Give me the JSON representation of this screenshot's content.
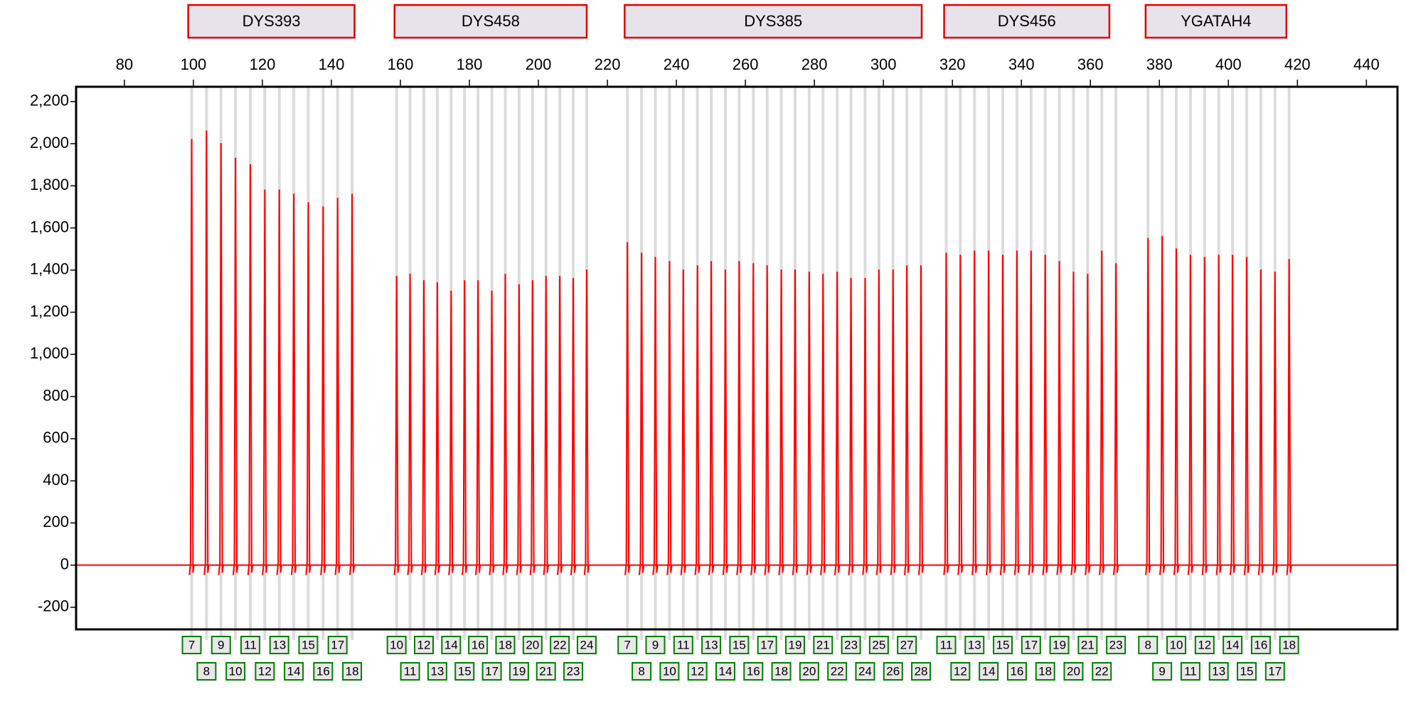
{
  "chart_data": {
    "type": "line",
    "color": "#ff0000",
    "xlim": [
      66,
      449
    ],
    "xticks": [
      80,
      100,
      120,
      140,
      160,
      180,
      200,
      220,
      240,
      260,
      280,
      300,
      320,
      340,
      360,
      380,
      400,
      420,
      440
    ],
    "ylim": [
      -305,
      2270
    ],
    "yticks": [
      -200,
      0,
      200,
      400,
      600,
      800,
      {
        "value": 1000,
        "label": "1,000"
      },
      {
        "value": 1200,
        "label": "1,200"
      },
      {
        "value": 1400,
        "label": "1,400"
      },
      {
        "value": 1600,
        "label": "1,600"
      },
      {
        "value": 1800,
        "label": "1,800"
      },
      {
        "value": 2000,
        "label": "2,000"
      },
      {
        "value": 2200,
        "label": "2,200"
      }
    ],
    "loci": [
      {
        "name": "DYS393",
        "start": 98.5,
        "end": 146.7,
        "alleles": [
          "7",
          "8",
          "9",
          "10",
          "11",
          "12",
          "13",
          "14",
          "15",
          "16",
          "17",
          "18"
        ],
        "x": [
          99.5,
          103.8,
          108,
          112.2,
          116.5,
          120.7,
          124.9,
          129.1,
          133.3,
          137.6,
          141.8,
          146
        ],
        "values": [
          2020,
          2060,
          2000,
          1930,
          1900,
          1780,
          1780,
          1760,
          1720,
          1700,
          1740,
          1760
        ]
      },
      {
        "name": "DYS458",
        "start": 158.3,
        "end": 214,
        "alleles": [
          "10",
          "11",
          "12",
          "13",
          "14",
          "15",
          "16",
          "17",
          "18",
          "19",
          "20",
          "21",
          "22",
          "23",
          "24"
        ],
        "x": [
          158.9,
          162.8,
          166.8,
          170.7,
          174.7,
          178.6,
          182.5,
          186.5,
          190.4,
          194.4,
          198.3,
          202.2,
          206.2,
          210.1,
          214
        ],
        "values": [
          1370,
          1380,
          1350,
          1340,
          1300,
          1350,
          1350,
          1300,
          1380,
          1330,
          1350,
          1370,
          1370,
          1360,
          1400
        ]
      },
      {
        "name": "DYS385",
        "start": 225,
        "end": 311.1,
        "alleles": [
          "7",
          "8",
          "9",
          "10",
          "11",
          "12",
          "13",
          "14",
          "15",
          "16",
          "17",
          "18",
          "19",
          "20",
          "21",
          "22",
          "23",
          "24",
          "25",
          "26",
          "27",
          "28"
        ],
        "x": [
          225.8,
          229.9,
          233.9,
          238,
          242,
          246.1,
          250.1,
          254.2,
          258.2,
          262.3,
          266.3,
          270.4,
          274.4,
          278.5,
          282.5,
          286.6,
          290.6,
          294.7,
          298.7,
          302.8,
          306.8,
          310.9
        ],
        "values": [
          1530,
          1480,
          1460,
          1440,
          1400,
          1420,
          1440,
          1400,
          1440,
          1430,
          1420,
          1400,
          1400,
          1390,
          1380,
          1390,
          1360,
          1360,
          1400,
          1400,
          1420,
          1420
        ]
      },
      {
        "name": "DYS456",
        "start": 317.6,
        "end": 365.5,
        "alleles": [
          "11",
          "12",
          "13",
          "14",
          "15",
          "16",
          "17",
          "18",
          "19",
          "20",
          "21",
          "22",
          "23"
        ],
        "x": [
          318.2,
          322.3,
          326.4,
          330.5,
          334.6,
          338.7,
          342.8,
          346.9,
          351,
          355.1,
          359.2,
          363.3,
          367.4
        ],
        "values": [
          1480,
          1470,
          1490,
          1490,
          1470,
          1490,
          1490,
          1470,
          1440,
          1390,
          1380,
          1490,
          1430
        ]
      },
      {
        "name": "YGATAH4",
        "start": 376,
        "end": 416.8,
        "alleles": [
          "8",
          "9",
          "10",
          "11",
          "12",
          "13",
          "14",
          "15",
          "16",
          "17",
          "18"
        ],
        "x": [
          376.7,
          380.8,
          384.9,
          389,
          393.1,
          397.2,
          401.2,
          405.3,
          409.4,
          413.5,
          417.6
        ],
        "values": [
          1550,
          1560,
          1500,
          1470,
          1460,
          1470,
          1470,
          1460,
          1400,
          1390,
          1450
        ]
      }
    ]
  }
}
